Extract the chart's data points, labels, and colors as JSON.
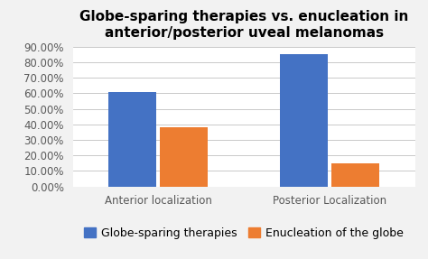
{
  "title_line1": "Globe-sparing therapies vs. enucleation in",
  "title_line2": "anterior/posterior uveal melanomas",
  "categories": [
    "Anterior localization",
    "Posterior Localization"
  ],
  "globe_sparing": [
    0.61,
    0.85
  ],
  "enucleation": [
    0.38,
    0.15
  ],
  "bar_color_blue": "#4472C4",
  "bar_color_orange": "#ED7D31",
  "legend_labels": [
    "Globe-sparing therapies",
    "Enucleation of the globe"
  ],
  "ylim": [
    0,
    0.9
  ],
  "yticks": [
    0.0,
    0.1,
    0.2,
    0.3,
    0.4,
    0.5,
    0.6,
    0.7,
    0.8,
    0.9
  ],
  "ytick_labels": [
    "0.00%",
    "10.00%",
    "20.00%",
    "30.00%",
    "40.00%",
    "50.00%",
    "60.00%",
    "70.00%",
    "80.00%",
    "90.00%"
  ],
  "background_color": "#F2F2F2",
  "plot_bg_color": "#FFFFFF",
  "title_fontsize": 11,
  "tick_fontsize": 8.5,
  "legend_fontsize": 9,
  "bar_width": 0.28,
  "x_positions": [
    0,
    1
  ]
}
